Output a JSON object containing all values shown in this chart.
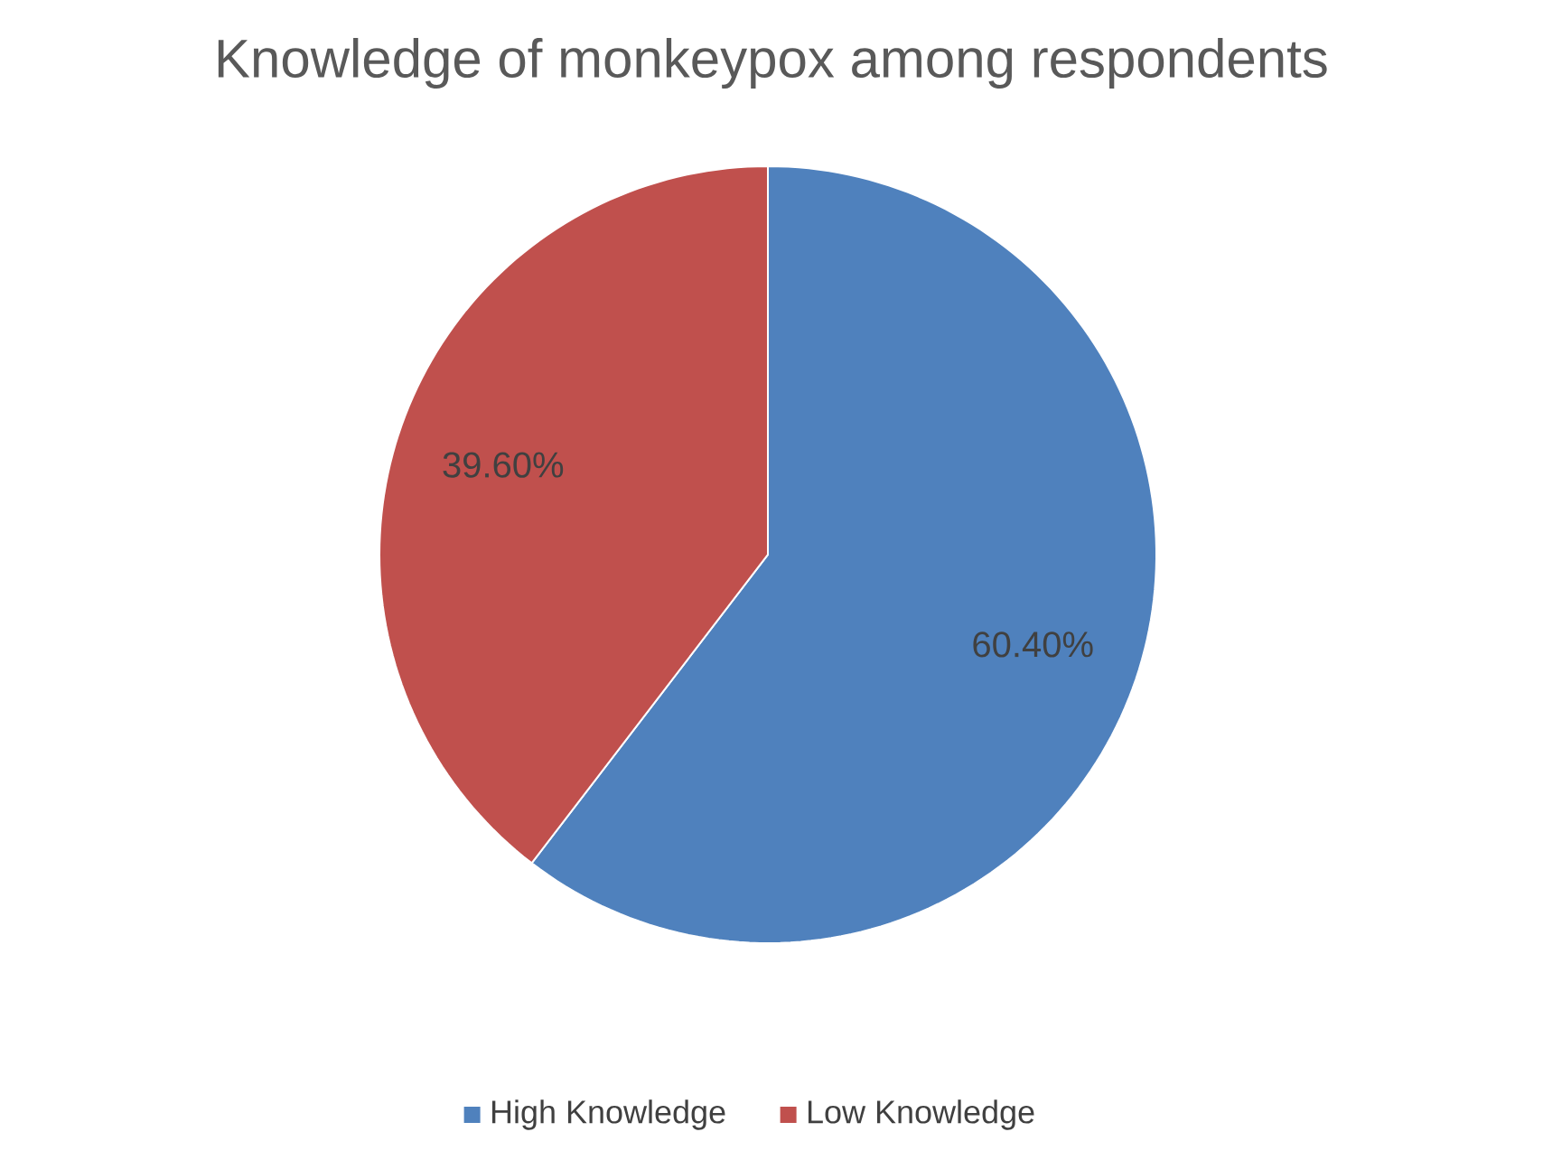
{
  "chart_data": {
    "type": "pie",
    "title": "Knowledge of monkeypox among respondents",
    "categories": [
      "High Knowledge",
      "Low Knowledge"
    ],
    "values": [
      60.4,
      39.6
    ],
    "colors": [
      "#4f81bd",
      "#c0504d"
    ],
    "value_labels": [
      "60.40%",
      "39.60%"
    ],
    "legend": "bottom"
  }
}
